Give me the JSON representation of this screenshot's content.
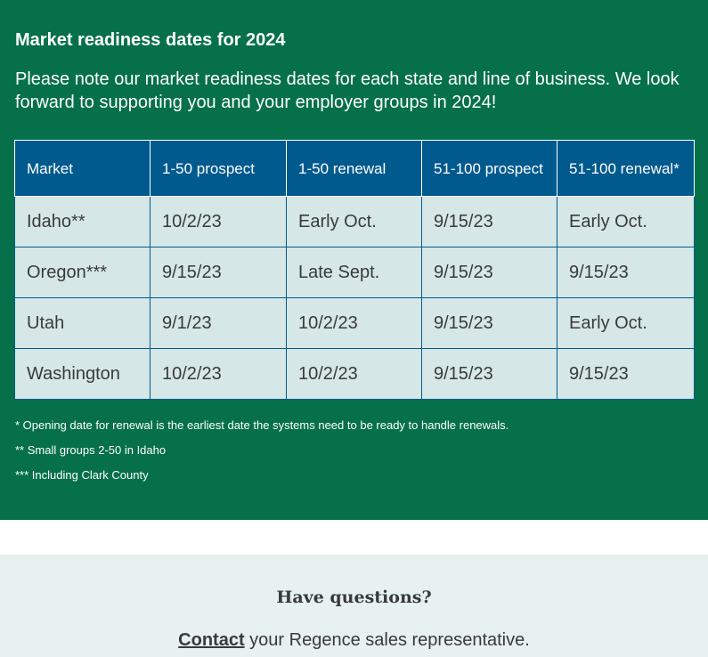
{
  "market_section": {
    "title": "Market readiness dates for 2024",
    "intro": "Please note our market readiness dates for each state and line of business. We look forward to supporting you and your employer groups in 2024!",
    "table": {
      "headers": [
        "Market",
        "1-50 prospect",
        "1-50 renewal",
        "51-100 prospect",
        "51-100 renewal*"
      ],
      "rows": [
        [
          "Idaho**",
          "10/2/23",
          "Early Oct.",
          "9/15/23",
          "Early Oct."
        ],
        [
          "Oregon***",
          "9/15/23",
          "Late Sept.",
          "9/15/23",
          "9/15/23"
        ],
        [
          "Utah",
          "9/1/23",
          "10/2/23",
          "9/15/23",
          "Early Oct."
        ],
        [
          "Washington",
          "10/2/23",
          "10/2/23",
          "9/15/23",
          "9/15/23"
        ]
      ]
    },
    "footnotes": [
      "* Opening date for renewal is the earliest date the systems need to be ready to handle renewals.",
      "** Small groups 2-50 in Idaho",
      "*** Including Clark County"
    ]
  },
  "questions_section": {
    "title": "Have questions?",
    "contact_link": "Contact",
    "contact_text": " your Regence sales representative."
  },
  "colors": {
    "panel_green": "#05704a",
    "header_blue": "#005a8e",
    "cell_bg": "#d5e7e6",
    "questions_bg": "#e6f1f0"
  }
}
